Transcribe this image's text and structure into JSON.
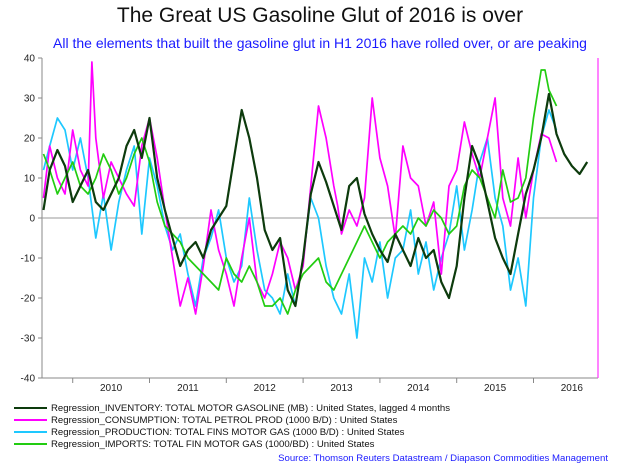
{
  "chart_data": {
    "type": "line",
    "title": "The Great US Gasoline Glut of 2016 is over",
    "subtitle": "All the elements that built the gasoline glut in H1 2016 have rolled over, or are peaking",
    "ylim": [
      -40,
      40
    ],
    "yticks": [
      -40,
      -30,
      -20,
      -10,
      0,
      10,
      20,
      30,
      40
    ],
    "xlim": [
      2009.6,
      2016.84
    ],
    "xtick_labels": [
      "2010",
      "2011",
      "2012",
      "2013",
      "2014",
      "2015",
      "2016"
    ],
    "grid": false,
    "legend_position": "bottom-left",
    "marker_line_x": 2016.84,
    "series": [
      {
        "name": "Regression_INVENTORY: TOTAL MOTOR GASOLINE (MB) : United States, lagged 4 months",
        "color": "#0d3b0d",
        "x": [
          2009.62,
          2009.7,
          2009.8,
          2009.9,
          2010.0,
          2010.1,
          2010.2,
          2010.3,
          2010.4,
          2010.5,
          2010.6,
          2010.7,
          2010.8,
          2010.9,
          2011.0,
          2011.1,
          2011.2,
          2011.3,
          2011.4,
          2011.5,
          2011.6,
          2011.7,
          2011.8,
          2011.9,
          2012.0,
          2012.1,
          2012.2,
          2012.3,
          2012.4,
          2012.5,
          2012.6,
          2012.7,
          2012.8,
          2012.9,
          2013.0,
          2013.1,
          2013.2,
          2013.3,
          2013.4,
          2013.5,
          2013.6,
          2013.7,
          2013.8,
          2013.9,
          2014.0,
          2014.1,
          2014.2,
          2014.3,
          2014.4,
          2014.5,
          2014.6,
          2014.7,
          2014.8,
          2014.9,
          2015.0,
          2015.1,
          2015.2,
          2015.3,
          2015.4,
          2015.5,
          2015.6,
          2015.7,
          2015.8,
          2015.9,
          2016.0,
          2016.1,
          2016.2,
          2016.3,
          2016.4,
          2016.5,
          2016.6,
          2016.7
        ],
        "values": [
          2,
          12,
          17,
          13,
          4,
          8,
          12,
          4,
          2,
          6,
          10,
          18,
          22,
          15,
          25,
          10,
          2,
          -5,
          -12,
          -8,
          -6,
          -10,
          -3,
          0,
          3,
          15,
          27,
          20,
          10,
          -3,
          -8,
          -5,
          -18,
          -22,
          -10,
          6,
          14,
          9,
          3,
          -3,
          8,
          10,
          1,
          -4,
          -8,
          -11,
          -4,
          -8,
          -12,
          -5,
          -10,
          -8,
          -16,
          -20,
          -12,
          5,
          18,
          13,
          4,
          -5,
          -10,
          -14,
          -4,
          6,
          12,
          20,
          31,
          21,
          16,
          13,
          11,
          14
        ]
      },
      {
        "name": "Regression_CONSUMPTION: TOTAL PETROL PROD (1000 B/D) : United States",
        "color": "#ff00ff",
        "x": [
          2009.62,
          2009.7,
          2009.8,
          2009.9,
          2010.0,
          2010.1,
          2010.2,
          2010.25,
          2010.3,
          2010.4,
          2010.5,
          2010.6,
          2010.7,
          2010.8,
          2010.9,
          2011.0,
          2011.1,
          2011.2,
          2011.3,
          2011.4,
          2011.5,
          2011.6,
          2011.7,
          2011.8,
          2011.9,
          2012.0,
          2012.1,
          2012.2,
          2012.3,
          2012.4,
          2012.5,
          2012.6,
          2012.7,
          2012.8,
          2012.9,
          2013.0,
          2013.1,
          2013.2,
          2013.3,
          2013.4,
          2013.45,
          2013.5,
          2013.6,
          2013.7,
          2013.8,
          2013.9,
          2014.0,
          2014.1,
          2014.2,
          2014.3,
          2014.4,
          2014.5,
          2014.6,
          2014.7,
          2014.8,
          2014.9,
          2015.0,
          2015.1,
          2015.2,
          2015.3,
          2015.4,
          2015.5,
          2015.6,
          2015.7,
          2015.8,
          2015.9,
          2016.0,
          2016.1,
          2016.2,
          2016.3
        ],
        "values": [
          5,
          18,
          10,
          6,
          22,
          12,
          8,
          39,
          20,
          5,
          14,
          10,
          6,
          3,
          18,
          25,
          15,
          2,
          -10,
          -22,
          -15,
          -24,
          -12,
          2,
          -8,
          -14,
          -22,
          -10,
          0,
          -16,
          -20,
          -14,
          -6,
          -10,
          -18,
          -12,
          8,
          28,
          20,
          8,
          3,
          -4,
          2,
          -2,
          5,
          30,
          15,
          8,
          -5,
          18,
          10,
          8,
          -2,
          4,
          -14,
          8,
          12,
          24,
          16,
          10,
          20,
          30,
          5,
          -2,
          15,
          0,
          12,
          21,
          20,
          14
        ]
      },
      {
        "name": "Regression_PRODUCTION: TOTAL FINS MOTOR GAS (1000 B/D) : United States",
        "color": "#1ec8ff",
        "x": [
          2009.62,
          2009.7,
          2009.8,
          2009.9,
          2010.0,
          2010.1,
          2010.2,
          2010.3,
          2010.4,
          2010.5,
          2010.6,
          2010.7,
          2010.8,
          2010.9,
          2011.0,
          2011.1,
          2011.2,
          2011.3,
          2011.4,
          2011.5,
          2011.6,
          2011.7,
          2011.8,
          2011.9,
          2012.0,
          2012.1,
          2012.2,
          2012.3,
          2012.4,
          2012.5,
          2012.6,
          2012.7,
          2012.8,
          2012.9,
          2013.0,
          2013.1,
          2013.2,
          2013.3,
          2013.4,
          2013.5,
          2013.6,
          2013.7,
          2013.8,
          2013.9,
          2014.0,
          2014.1,
          2014.2,
          2014.3,
          2014.4,
          2014.5,
          2014.6,
          2014.7,
          2014.8,
          2014.9,
          2015.0,
          2015.1,
          2015.2,
          2015.3,
          2015.4,
          2015.5,
          2015.6,
          2015.7,
          2015.8,
          2015.9,
          2016.0,
          2016.1,
          2016.2,
          2016.3
        ],
        "values": [
          12,
          18,
          25,
          22,
          12,
          20,
          10,
          -5,
          6,
          -8,
          4,
          12,
          18,
          -4,
          15,
          8,
          -2,
          -8,
          -4,
          -14,
          -22,
          -10,
          -5,
          2,
          -10,
          -16,
          -12,
          5,
          -8,
          -18,
          -20,
          -24,
          -14,
          -22,
          -10,
          5,
          0,
          -12,
          -20,
          -24,
          -14,
          -30,
          -10,
          -16,
          -6,
          -20,
          -10,
          -8,
          2,
          -14,
          -6,
          -18,
          -10,
          -4,
          8,
          -8,
          2,
          14,
          20,
          5,
          -2,
          -18,
          -10,
          -22,
          5,
          20,
          27,
          22
        ]
      },
      {
        "name": "Regression_IMPORTS: TOTAL FIN MOTOR GAS (1000/BD) : United States",
        "color": "#22cc11",
        "x": [
          2009.62,
          2009.7,
          2009.8,
          2009.9,
          2010.0,
          2010.1,
          2010.2,
          2010.3,
          2010.4,
          2010.5,
          2010.6,
          2010.7,
          2010.8,
          2010.9,
          2011.0,
          2011.1,
          2011.2,
          2011.3,
          2011.4,
          2011.5,
          2011.6,
          2011.7,
          2011.8,
          2011.9,
          2012.0,
          2012.1,
          2012.2,
          2012.3,
          2012.4,
          2012.5,
          2012.6,
          2012.7,
          2012.8,
          2012.9,
          2013.0,
          2013.1,
          2013.2,
          2013.3,
          2013.4,
          2013.5,
          2013.6,
          2013.7,
          2013.8,
          2013.9,
          2014.0,
          2014.1,
          2014.2,
          2014.3,
          2014.4,
          2014.5,
          2014.6,
          2014.7,
          2014.8,
          2014.9,
          2015.0,
          2015.1,
          2015.2,
          2015.3,
          2015.4,
          2015.5,
          2015.6,
          2015.7,
          2015.8,
          2015.9,
          2016.0,
          2016.1,
          2016.15,
          2016.2,
          2016.3
        ],
        "values": [
          16,
          12,
          6,
          10,
          14,
          8,
          6,
          10,
          16,
          12,
          6,
          10,
          16,
          20,
          14,
          4,
          -2,
          -4,
          -6,
          -10,
          -12,
          -14,
          -16,
          -18,
          -10,
          -14,
          -16,
          -12,
          -16,
          -22,
          -22,
          -20,
          -24,
          -18,
          -14,
          -12,
          -10,
          -16,
          -18,
          -14,
          -10,
          -6,
          -2,
          -6,
          -10,
          -6,
          -4,
          -2,
          -4,
          0,
          -2,
          2,
          0,
          -4,
          -2,
          8,
          12,
          10,
          5,
          0,
          12,
          4,
          5,
          10,
          25,
          37,
          37,
          32,
          28
        ]
      }
    ]
  },
  "source": "Source: Thomson Reuters Datastream / Diapason Commodities Management"
}
